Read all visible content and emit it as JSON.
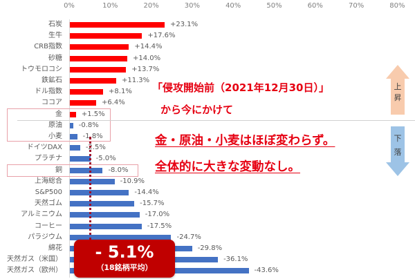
{
  "chart_data": {
    "type": "bar",
    "orientation": "horizontal",
    "title": "",
    "xlabel": "",
    "ylabel": "",
    "xlim": [
      0,
      80
    ],
    "x_ticks": [
      "0%",
      "10%",
      "20%",
      "30%",
      "40%",
      "50%",
      "60%",
      "70%",
      "80%"
    ],
    "note": "Bars are plotted by magnitude; red = increase, blue = decrease",
    "categories": [
      "石炭",
      "生牛",
      "CRB指数",
      "砂糖",
      "トウモロコシ",
      "鉄鉱石",
      "ドル指数",
      "ココア",
      "金",
      "原油",
      "小麦",
      "ドイツDAX",
      "プラチナ",
      "銅",
      "上海総合",
      "S&P500",
      "天然ゴム",
      "アルミニウム",
      "コーヒー",
      "パラジウム",
      "綿花",
      "天然ガス（米国）",
      "天然ガス（欧州）"
    ],
    "values": [
      23.1,
      17.6,
      14.4,
      14.0,
      13.7,
      11.3,
      8.1,
      6.4,
      1.5,
      -0.8,
      -1.8,
      -2.5,
      -5.0,
      -8.0,
      -10.9,
      -14.4,
      -15.7,
      -17.0,
      -17.5,
      -24.7,
      -29.8,
      -36.1,
      -43.6
    ],
    "labels": [
      "+23.1%",
      "+17.6%",
      "+14.4%",
      "+14.0%",
      "+13.7%",
      "+11.3%",
      "+8.1%",
      "+6.4%",
      "+1.5%",
      "-0.8%",
      "-1.8%",
      "-2.5%",
      "-5.0%",
      "-8.0%",
      "-10.9%",
      "-14.4%",
      "-15.7%",
      "-17.0%",
      "-17.5%",
      "-24.7%",
      "-29.8%",
      "-36.1%",
      "-43.6%"
    ],
    "colors": {
      "positive": "#ff0000",
      "negative": "#4472c4"
    },
    "average_line": {
      "value": -5.1,
      "label": "- 5.1%",
      "sublabel": "（18銘柄平均）"
    },
    "highlighted": [
      "金",
      "原油",
      "小麦",
      "銅"
    ]
  },
  "annotations": {
    "line1": "「侵攻開始前（2021年12月30日）」",
    "line2": "から今にかけて",
    "line3": "金・原油・小麦はほぼ変わらず。",
    "line4": "全体的に大きな変動なし。"
  },
  "arrows": {
    "up": {
      "char1": "上",
      "char2": "昇",
      "color": "#f8cbad"
    },
    "down": {
      "char1": "下",
      "char2": "落",
      "color": "#9dc3e6"
    }
  },
  "average_box": {
    "value": "- 5.1%",
    "sublabel": "（18銘柄平均）",
    "color": "#c00000"
  }
}
